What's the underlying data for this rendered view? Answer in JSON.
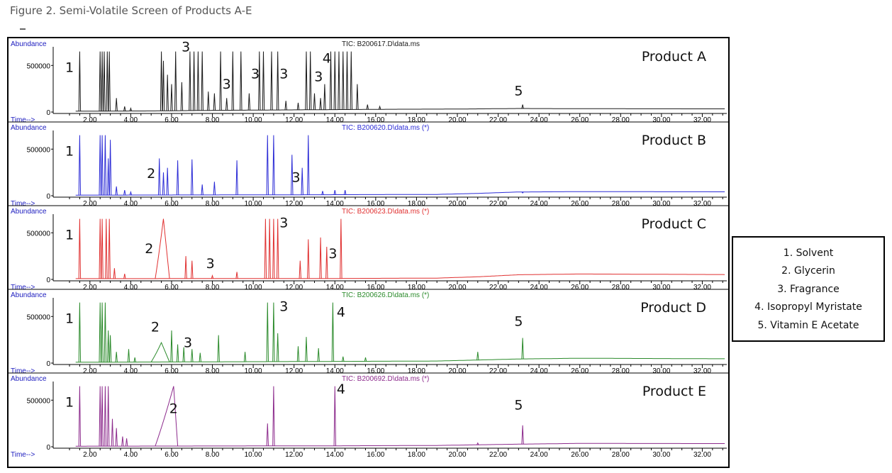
{
  "figure_title": "Figure 2. Semi-Volatile Screen of Products A-E",
  "legend": [
    "1. Solvent",
    "2. Glycerin",
    "3. Fragrance",
    "4. Isopropyl Myristate",
    "5. Vitamin E Acetate"
  ],
  "chart_data": [
    {
      "type": "line",
      "product_label": "Product A",
      "tic_label": "TIC: B200617.D\\data.ms",
      "ylabel": "Abundance",
      "xlabel": "Time-->",
      "xlim": [
        0.2,
        33.2
      ],
      "ylim": [
        0,
        700000
      ],
      "yticks": [
        "500000",
        "0"
      ],
      "xticks": [
        "2.00",
        "4.00",
        "6.00",
        "8.00",
        "10.00",
        "12.00",
        "14.00",
        "16.00",
        "18.00",
        "20.00",
        "22.00",
        "24.00",
        "26.00",
        "28.00",
        "30.00",
        "32.00"
      ],
      "series_color": "#1a1a1a",
      "title_color": "#1a1a1a",
      "baseline_profile": [
        [
          0.2,
          8000
        ],
        [
          5,
          12000
        ],
        [
          8,
          18000
        ],
        [
          14,
          26000
        ],
        [
          17,
          30000
        ],
        [
          20,
          32000
        ],
        [
          23,
          38000
        ],
        [
          26,
          36000
        ],
        [
          33.2,
          34000
        ]
      ],
      "peaks": [
        [
          1.5,
          650000
        ],
        [
          2.5,
          650000
        ],
        [
          2.6,
          650000
        ],
        [
          2.7,
          650000
        ],
        [
          2.85,
          650000
        ],
        [
          2.95,
          650000
        ],
        [
          3.3,
          150000
        ],
        [
          3.7,
          60000
        ],
        [
          4.0,
          40000
        ],
        [
          5.5,
          650000
        ],
        [
          5.6,
          550000
        ],
        [
          5.8,
          400000
        ],
        [
          6.0,
          300000
        ],
        [
          6.2,
          650000
        ],
        [
          6.5,
          320000
        ],
        [
          6.9,
          650000
        ],
        [
          7.1,
          650000
        ],
        [
          7.3,
          650000
        ],
        [
          7.5,
          650000
        ],
        [
          7.8,
          220000
        ],
        [
          8.1,
          200000
        ],
        [
          8.4,
          650000
        ],
        [
          8.7,
          150000
        ],
        [
          9.0,
          650000
        ],
        [
          9.4,
          650000
        ],
        [
          9.8,
          200000
        ],
        [
          10.3,
          650000
        ],
        [
          10.5,
          650000
        ],
        [
          10.9,
          650000
        ],
        [
          11.2,
          650000
        ],
        [
          11.6,
          120000
        ],
        [
          12.2,
          100000
        ],
        [
          12.6,
          650000
        ],
        [
          12.8,
          650000
        ],
        [
          13.0,
          200000
        ],
        [
          13.3,
          150000
        ],
        [
          13.5,
          300000
        ],
        [
          13.8,
          650000
        ],
        [
          14.0,
          650000
        ],
        [
          14.2,
          650000
        ],
        [
          14.4,
          650000
        ],
        [
          14.6,
          650000
        ],
        [
          14.8,
          650000
        ],
        [
          15.1,
          300000
        ],
        [
          15.6,
          80000
        ],
        [
          16.2,
          60000
        ],
        [
          23.2,
          80000
        ]
      ],
      "annotations": [
        {
          "text": "1",
          "x": 1.0,
          "y": 430000
        },
        {
          "text": "3",
          "x": 6.7,
          "y": 650000
        },
        {
          "text": "3",
          "x": 8.7,
          "y": 250000
        },
        {
          "text": "3",
          "x": 10.1,
          "y": 360000
        },
        {
          "text": "3",
          "x": 11.5,
          "y": 360000
        },
        {
          "text": "3",
          "x": 13.2,
          "y": 330000
        },
        {
          "text": "4",
          "x": 13.6,
          "y": 530000
        },
        {
          "text": "5",
          "x": 23.0,
          "y": 180000
        }
      ]
    },
    {
      "type": "line",
      "product_label": "Product B",
      "tic_label": "TIC: B200620.D\\data.ms (*)",
      "ylabel": "Abundance",
      "xlabel": "Time-->",
      "xlim": [
        0.2,
        33.2
      ],
      "ylim": [
        0,
        700000
      ],
      "yticks": [
        "500000",
        "0"
      ],
      "xticks": [
        "2.00",
        "4.00",
        "6.00",
        "8.00",
        "10.00",
        "12.00",
        "14.00",
        "16.00",
        "18.00",
        "20.00",
        "22.00",
        "24.00",
        "26.00",
        "28.00",
        "30.00",
        "32.00"
      ],
      "series_color": "#2b2bd6",
      "title_color": "#2b2bd6",
      "baseline_profile": [
        [
          0.2,
          6000
        ],
        [
          12,
          10000
        ],
        [
          19,
          14000
        ],
        [
          21,
          25000
        ],
        [
          23,
          40000
        ],
        [
          26,
          44000
        ],
        [
          33.2,
          42000
        ]
      ],
      "peaks": [
        [
          1.5,
          650000
        ],
        [
          2.5,
          650000
        ],
        [
          2.6,
          650000
        ],
        [
          2.75,
          650000
        ],
        [
          2.9,
          400000
        ],
        [
          3.0,
          600000
        ],
        [
          3.3,
          100000
        ],
        [
          3.7,
          60000
        ],
        [
          4.0,
          40000
        ],
        [
          5.4,
          400000
        ],
        [
          5.6,
          250000
        ],
        [
          5.8,
          300000
        ],
        [
          6.3,
          380000
        ],
        [
          7.0,
          390000
        ],
        [
          7.5,
          120000
        ],
        [
          8.1,
          150000
        ],
        [
          9.2,
          380000
        ],
        [
          10.7,
          650000
        ],
        [
          11.0,
          650000
        ],
        [
          11.9,
          440000
        ],
        [
          12.4,
          300000
        ],
        [
          12.7,
          650000
        ],
        [
          13.4,
          50000
        ],
        [
          14.0,
          60000
        ],
        [
          14.5,
          60000
        ],
        [
          23.2,
          30000
        ]
      ],
      "annotations": [
        {
          "text": "1",
          "x": 1.0,
          "y": 430000
        },
        {
          "text": "2",
          "x": 5.0,
          "y": 190000
        },
        {
          "text": "3",
          "x": 12.1,
          "y": 150000
        }
      ]
    },
    {
      "type": "line",
      "product_label": "Product C",
      "tic_label": "TIC: B200623.D\\data.ms (*)",
      "ylabel": "Abundance",
      "xlabel": "Time-->",
      "xlim": [
        0.2,
        33.2
      ],
      "ylim": [
        0,
        700000
      ],
      "yticks": [
        "500000",
        "0"
      ],
      "xticks": [
        "2.00",
        "4.00",
        "6.00",
        "8.00",
        "10.00",
        "12.00",
        "14.00",
        "16.00",
        "18.00",
        "20.00",
        "22.00",
        "24.00",
        "26.00",
        "28.00",
        "30.00",
        "32.00"
      ],
      "series_color": "#e03030",
      "title_color": "#e03030",
      "baseline_profile": [
        [
          0.2,
          8000
        ],
        [
          14,
          10000
        ],
        [
          19,
          14000
        ],
        [
          21,
          28000
        ],
        [
          23,
          50000
        ],
        [
          26,
          58000
        ],
        [
          33.2,
          52000
        ]
      ],
      "peaks": [
        [
          1.5,
          650000
        ],
        [
          2.5,
          650000
        ],
        [
          2.6,
          650000
        ],
        [
          2.8,
          650000
        ],
        [
          2.95,
          650000
        ],
        [
          3.2,
          120000
        ],
        [
          3.7,
          60000
        ],
        [
          6.7,
          250000
        ],
        [
          7.0,
          200000
        ],
        [
          8.0,
          40000
        ],
        [
          9.2,
          80000
        ],
        [
          10.6,
          650000
        ],
        [
          10.8,
          650000
        ],
        [
          11.0,
          650000
        ],
        [
          11.2,
          650000
        ],
        [
          12.3,
          200000
        ],
        [
          12.7,
          430000
        ],
        [
          13.3,
          450000
        ],
        [
          13.6,
          350000
        ],
        [
          14.3,
          650000
        ]
      ],
      "broad_peak": {
        "from": 5.2,
        "peak": 5.6,
        "to": 5.9,
        "height": 650000
      },
      "annotations": [
        {
          "text": "1",
          "x": 1.0,
          "y": 430000
        },
        {
          "text": "2",
          "x": 4.9,
          "y": 280000
        },
        {
          "text": "3",
          "x": 7.9,
          "y": 120000
        },
        {
          "text": "3",
          "x": 11.5,
          "y": 560000
        },
        {
          "text": "3",
          "x": 13.9,
          "y": 230000
        }
      ]
    },
    {
      "type": "line",
      "product_label": "Product D",
      "tic_label": "TIC: B200626.D\\data.ms (*)",
      "ylabel": "Abundance",
      "xlabel": "Time-->",
      "xlim": [
        0.2,
        33.2
      ],
      "ylim": [
        0,
        700000
      ],
      "yticks": [
        "500000",
        "0"
      ],
      "xticks": [
        "2.00",
        "4.00",
        "6.00",
        "8.00",
        "10.00",
        "12.00",
        "14.00",
        "16.00",
        "18.00",
        "20.00",
        "22.00",
        "24.00",
        "26.00",
        "28.00",
        "30.00",
        "32.00"
      ],
      "series_color": "#2a8a2a",
      "title_color": "#2a8a2a",
      "baseline_profile": [
        [
          0.2,
          8000
        ],
        [
          14,
          18000
        ],
        [
          19,
          22000
        ],
        [
          23,
          44000
        ],
        [
          26,
          52000
        ],
        [
          33.2,
          46000
        ]
      ],
      "peaks": [
        [
          1.5,
          650000
        ],
        [
          2.5,
          650000
        ],
        [
          2.6,
          650000
        ],
        [
          2.75,
          650000
        ],
        [
          2.9,
          350000
        ],
        [
          3.0,
          300000
        ],
        [
          3.3,
          120000
        ],
        [
          3.9,
          150000
        ],
        [
          4.2,
          60000
        ],
        [
          6.0,
          350000
        ],
        [
          6.3,
          200000
        ],
        [
          6.6,
          170000
        ],
        [
          7.0,
          150000
        ],
        [
          7.4,
          110000
        ],
        [
          8.3,
          300000
        ],
        [
          9.6,
          120000
        ],
        [
          10.7,
          650000
        ],
        [
          11.0,
          650000
        ],
        [
          11.2,
          320000
        ],
        [
          12.2,
          180000
        ],
        [
          12.6,
          280000
        ],
        [
          13.2,
          160000
        ],
        [
          13.9,
          650000
        ],
        [
          14.4,
          70000
        ],
        [
          15.5,
          60000
        ],
        [
          21.0,
          120000
        ],
        [
          23.2,
          270000
        ]
      ],
      "broad_peak": {
        "from": 5.0,
        "peak": 5.5,
        "to": 5.9,
        "height": 220000
      },
      "annotations": [
        {
          "text": "1",
          "x": 1.0,
          "y": 430000
        },
        {
          "text": "2",
          "x": 5.2,
          "y": 340000
        },
        {
          "text": "3",
          "x": 6.8,
          "y": 170000
        },
        {
          "text": "3",
          "x": 11.5,
          "y": 560000
        },
        {
          "text": "4",
          "x": 14.3,
          "y": 500000
        },
        {
          "text": "5",
          "x": 23.0,
          "y": 400000
        }
      ]
    },
    {
      "type": "line",
      "product_label": "Product E",
      "tic_label": "TIC: B200692.D\\data.ms (*)",
      "ylabel": "Abundance",
      "xlabel": "Time-->",
      "xlim": [
        0.2,
        33.2
      ],
      "ylim": [
        0,
        700000
      ],
      "yticks": [
        "500000",
        "0"
      ],
      "xticks": [
        "2.00",
        "4.00",
        "6.00",
        "8.00",
        "10.00",
        "12.00",
        "14.00",
        "16.00",
        "18.00",
        "20.00",
        "22.00",
        "24.00",
        "26.00",
        "28.00",
        "30.00",
        "32.00"
      ],
      "series_color": "#8c2a8c",
      "title_color": "#8c2a8c",
      "baseline_profile": [
        [
          0.2,
          6000
        ],
        [
          14,
          10000
        ],
        [
          19,
          14000
        ],
        [
          23,
          28000
        ],
        [
          26,
          36000
        ],
        [
          33.2,
          34000
        ]
      ],
      "peaks": [
        [
          1.5,
          650000
        ],
        [
          2.5,
          650000
        ],
        [
          2.6,
          650000
        ],
        [
          2.75,
          650000
        ],
        [
          2.9,
          650000
        ],
        [
          3.1,
          300000
        ],
        [
          3.3,
          200000
        ],
        [
          3.6,
          110000
        ],
        [
          3.8,
          90000
        ],
        [
          10.7,
          250000
        ],
        [
          11.0,
          650000
        ],
        [
          14.0,
          650000
        ],
        [
          21.0,
          40000
        ],
        [
          23.2,
          230000
        ]
      ],
      "broad_peak": {
        "from": 5.2,
        "peak": 6.1,
        "to": 6.3,
        "height": 650000
      },
      "annotations": [
        {
          "text": "1",
          "x": 1.0,
          "y": 430000
        },
        {
          "text": "2",
          "x": 6.1,
          "y": 360000
        },
        {
          "text": "4",
          "x": 14.3,
          "y": 570000
        },
        {
          "text": "5",
          "x": 23.0,
          "y": 400000
        }
      ]
    }
  ]
}
